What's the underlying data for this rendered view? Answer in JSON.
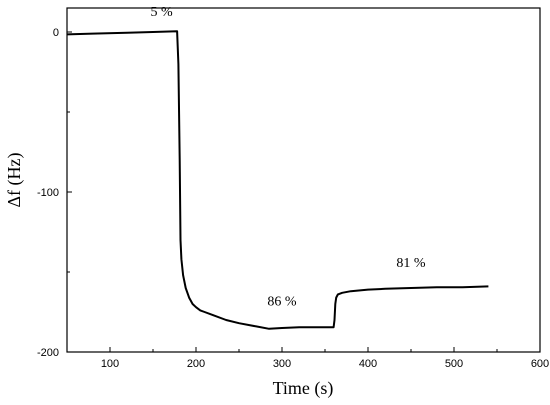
{
  "chart_data": {
    "type": "line",
    "xlabel": "Time (s)",
    "ylabel": "Δf (Hz)",
    "xlim": [
      50,
      600
    ],
    "ylim": [
      -200,
      15
    ],
    "xticks": [
      100,
      200,
      300,
      400,
      500,
      600
    ],
    "yticks": [
      0,
      -100,
      -200
    ],
    "grid": false,
    "series": [
      {
        "x": [
          50,
          80,
          120,
          150,
          178,
          179.5,
          181,
          182,
          183,
          185,
          188,
          192,
          196,
          200,
          205,
          210,
          220,
          235,
          250,
          270,
          285,
          300,
          320,
          340,
          360,
          361,
          362,
          363,
          365,
          370,
          380,
          400,
          420,
          450,
          480,
          510,
          540
        ],
        "y": [
          -1.5,
          -1,
          -0.5,
          0,
          0.5,
          -20,
          -80,
          -130,
          -142,
          -152,
          -160,
          -166,
          -170,
          -172,
          -174,
          -175,
          -177,
          -180,
          -182,
          -184,
          -185.5,
          -185,
          -184.5,
          -184.5,
          -184.5,
          -180,
          -170,
          -166,
          -164,
          -163,
          -162,
          -161,
          -160.5,
          -160,
          -159.5,
          -159.5,
          -159
        ]
      }
    ],
    "annotations": [
      {
        "text": "5 %",
        "x": 160,
        "y": 10
      },
      {
        "text": "86 %",
        "x": 300,
        "y": -171
      },
      {
        "text": "81 %",
        "x": 450,
        "y": -147
      }
    ]
  }
}
